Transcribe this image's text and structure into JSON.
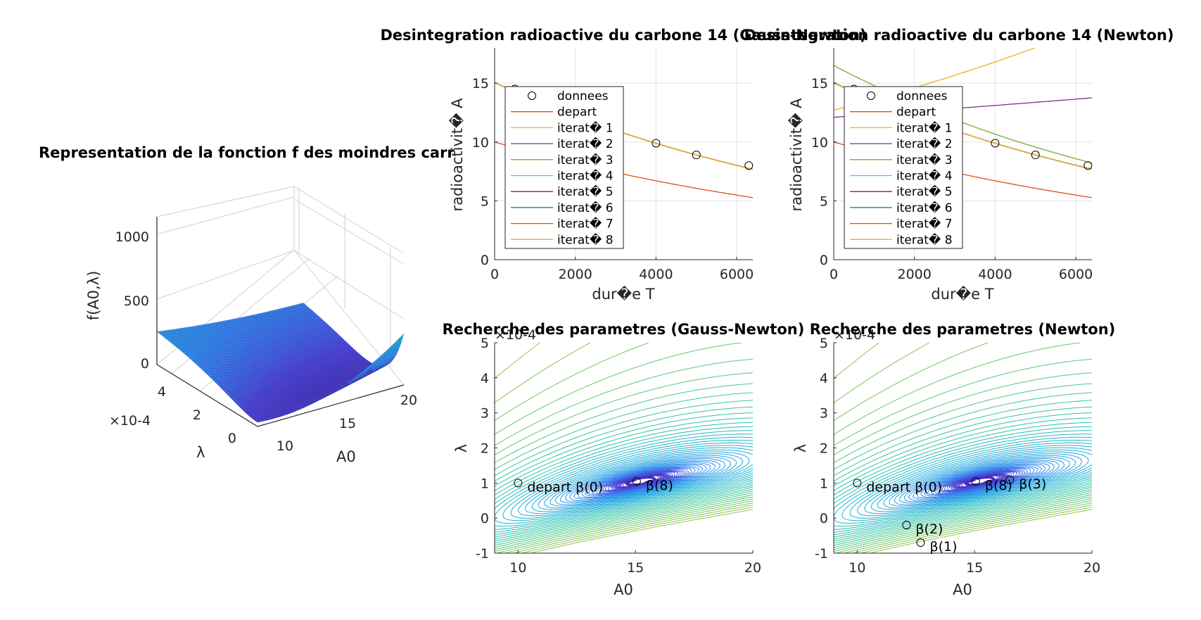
{
  "chart_data": [
    {
      "id": "surface",
      "type": "surface",
      "title": "Representation de la fonction f des moindres carr",
      "xlabel": "A0",
      "ylabel": "λ",
      "zlabel": "f(A0,λ)",
      "xticks": [
        "10",
        "15",
        "20"
      ],
      "yticks": [
        "0",
        "2",
        "4"
      ],
      "yexponent": "×10-4",
      "zticks": [
        "0",
        "500",
        "1000"
      ],
      "xlim": [
        9,
        20
      ],
      "ylim": [
        0,
        0.0005
      ],
      "zlim": [
        0,
        1150
      ],
      "colormap": [
        "#3E26A8",
        "#4A42D8",
        "#2F8BF0",
        "#19B0D8",
        "#32C79B",
        "#A6C43E",
        "#F9D623"
      ]
    },
    {
      "id": "gn_data",
      "type": "line",
      "title": "Desintegration radioactive du carbone 14 (Gauss-Newton)",
      "xlabel": "dur�e T",
      "ylabel": "radioactivit� A",
      "xlim": [
        0,
        6400
      ],
      "ylim": [
        0,
        18
      ],
      "xticks": [
        "0",
        "2000",
        "4000",
        "6000"
      ],
      "yticks": [
        "0",
        "5",
        "10",
        "15"
      ],
      "grid": true,
      "legend_position": "upper-left",
      "data_points": {
        "name": "donnees",
        "x": [
          500,
          4000,
          5000,
          6300
        ],
        "y": [
          14.5,
          9.9,
          8.9,
          8.0
        ]
      },
      "series": [
        {
          "name": "depart",
          "A0": 10,
          "lambda": 0.0001,
          "color": "#D95319"
        },
        {
          "name": "iterat� 1",
          "A0": 15.05,
          "lambda": 0.000105,
          "color": "#EDB120"
        },
        {
          "name": "iterat� 2",
          "A0": 15.05,
          "lambda": 0.000105,
          "color": "#7E2F8E"
        },
        {
          "name": "iterat� 3",
          "A0": 15.05,
          "lambda": 0.000105,
          "color": "#77AC30"
        },
        {
          "name": "iterat� 4",
          "A0": 15.05,
          "lambda": 0.000105,
          "color": "#4DBEEE"
        },
        {
          "name": "iterat� 5",
          "A0": 15.05,
          "lambda": 0.000105,
          "color": "#A2142F"
        },
        {
          "name": "iterat� 6",
          "A0": 15.05,
          "lambda": 0.000105,
          "color": "#0072BD"
        },
        {
          "name": "iterat� 7",
          "A0": 15.05,
          "lambda": 0.000105,
          "color": "#D95319"
        },
        {
          "name": "iterat� 8",
          "A0": 15.05,
          "lambda": 0.000105,
          "color": "#EDB120"
        }
      ]
    },
    {
      "id": "newton_data",
      "type": "line",
      "title": "Desintegration radioactive du carbone 14 (Newton)",
      "xlabel": "dur�e T",
      "ylabel": "radioactivit� A",
      "xlim": [
        0,
        6400
      ],
      "ylim": [
        0,
        18
      ],
      "xticks": [
        "0",
        "2000",
        "4000",
        "6000"
      ],
      "yticks": [
        "0",
        "5",
        "10",
        "15"
      ],
      "grid": true,
      "legend_position": "upper-left",
      "data_points": {
        "name": "donnees",
        "x": [
          500,
          4000,
          5000,
          6300
        ],
        "y": [
          14.5,
          9.9,
          8.9,
          8.0
        ]
      },
      "series": [
        {
          "name": "depart",
          "A0": 10,
          "lambda": 0.0001,
          "color": "#D95319"
        },
        {
          "name": "iterat� 1",
          "A0": 12.7,
          "lambda": -7e-05,
          "color": "#EDB120"
        },
        {
          "name": "iterat� 2",
          "A0": 12.1,
          "lambda": -2e-05,
          "color": "#7E2F8E"
        },
        {
          "name": "iterat� 3",
          "A0": 16.5,
          "lambda": 0.000109,
          "color": "#77AC30"
        },
        {
          "name": "iterat� 4",
          "A0": 15.0,
          "lambda": 0.000104,
          "color": "#4DBEEE"
        },
        {
          "name": "iterat� 5",
          "A0": 15.05,
          "lambda": 0.000105,
          "color": "#A2142F"
        },
        {
          "name": "iterat� 6",
          "A0": 15.05,
          "lambda": 0.000105,
          "color": "#0072BD"
        },
        {
          "name": "iterat� 7",
          "A0": 15.05,
          "lambda": 0.000105,
          "color": "#D95319"
        },
        {
          "name": "iterat� 8",
          "A0": 15.05,
          "lambda": 0.000105,
          "color": "#EDB120"
        }
      ]
    },
    {
      "id": "gn_contour",
      "type": "contour",
      "title": "Recherche des parametres (Gauss-Newton)",
      "xlabel": "A0",
      "ylabel": "λ",
      "xlim": [
        9,
        20
      ],
      "ylim": [
        -0.0001,
        0.0005
      ],
      "xticks": [
        "10",
        "15",
        "20"
      ],
      "yticks": [
        "-1",
        "0",
        "1",
        "2",
        "3",
        "4",
        "5"
      ],
      "yexponent": "×10-4",
      "iterates": [
        {
          "label": "depart β(0)",
          "A0": 10.0,
          "lambda": 0.0001
        },
        {
          "label": "β(8)",
          "A0": 15.05,
          "lambda": 0.000105
        }
      ]
    },
    {
      "id": "newton_contour",
      "type": "contour",
      "title": "Recherche des parametres (Newton)",
      "xlabel": "A0",
      "ylabel": "λ",
      "xlim": [
        9,
        20
      ],
      "ylim": [
        -0.0001,
        0.0005
      ],
      "xticks": [
        "10",
        "15",
        "20"
      ],
      "yticks": [
        "-1",
        "0",
        "1",
        "2",
        "3",
        "4",
        "5"
      ],
      "yexponent": "×10-4",
      "iterates": [
        {
          "label": "depart β(0)",
          "A0": 10.0,
          "lambda": 0.0001
        },
        {
          "label": "β(1)",
          "A0": 12.7,
          "lambda": -7e-05
        },
        {
          "label": "β(2)",
          "A0": 12.1,
          "lambda": -2e-05
        },
        {
          "label": "β(3)",
          "A0": 16.5,
          "lambda": 0.000109
        },
        {
          "label": "β(8)",
          "A0": 15.05,
          "lambda": 0.000105
        }
      ]
    }
  ]
}
